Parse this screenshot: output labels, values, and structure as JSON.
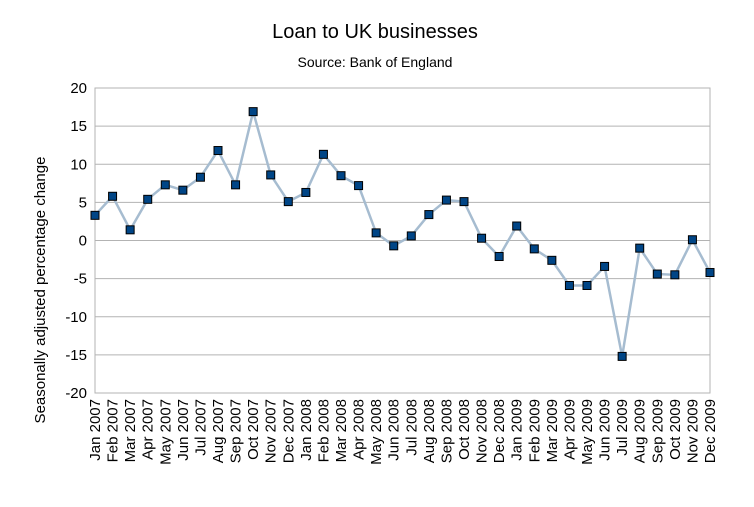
{
  "chart_data": {
    "type": "line",
    "title": "Loan to UK businesses",
    "subtitle": "Source: Bank of England",
    "xlabel": "",
    "ylabel": "Seasonally adjusted percentage change",
    "ylim": [
      -20,
      20
    ],
    "yticks": [
      20,
      15,
      10,
      5,
      0,
      -5,
      -10,
      -15,
      -20
    ],
    "grid": true,
    "legend": "none",
    "colors": {
      "line": "#a6bcd0",
      "marker_fill": "#004586",
      "marker_stroke": "#000000"
    },
    "categories": [
      "Jan 2007",
      "Feb 2007",
      "Mar 2007",
      "Apr 2007",
      "May 2007",
      "Jun 2007",
      "Jul 2007",
      "Aug 2007",
      "Sep 2007",
      "Oct 2007",
      "Nov 2007",
      "Dec 2007",
      "Jan 2008",
      "Feb 2008",
      "Mar 2008",
      "Apr 2008",
      "May 2008",
      "Jun 2008",
      "Jul 2008",
      "Aug 2008",
      "Sep 2008",
      "Oct 2008",
      "Nov 2008",
      "Dec 2008",
      "Jan 2009",
      "Feb 2009",
      "Mar 2009",
      "Apr 2009",
      "May 2009",
      "Jun 2009",
      "Jul 2009",
      "Aug 2009",
      "Sep 2009",
      "Oct 2009",
      "Nov 2009",
      "Dec 2009"
    ],
    "values": [
      3.3,
      5.8,
      1.4,
      5.4,
      7.3,
      6.6,
      8.3,
      11.8,
      7.3,
      16.9,
      8.6,
      5.1,
      6.3,
      11.3,
      8.5,
      7.2,
      1.0,
      -0.7,
      0.6,
      3.4,
      5.3,
      5.1,
      0.3,
      -2.1,
      1.9,
      -1.1,
      -2.6,
      -5.9,
      -5.9,
      -3.4,
      -15.2,
      -1.0,
      -4.4,
      -4.5,
      0.1,
      -4.2
    ]
  }
}
